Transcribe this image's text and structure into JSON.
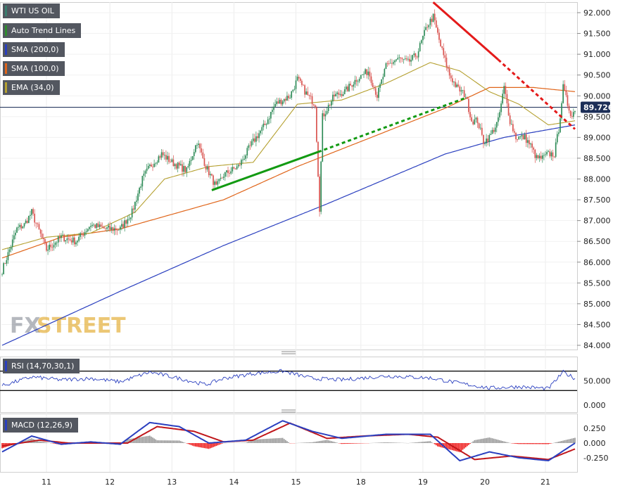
{
  "legend": [
    {
      "label": "WTI US OIL",
      "color": "#3a7d6d"
    },
    {
      "label": "Auto Trend Lines",
      "color": "#2e8b2e"
    },
    {
      "label": "SMA (200,0)",
      "color": "#2a3fbf"
    },
    {
      "label": "SMA (100,0)",
      "color": "#e0651a"
    },
    {
      "label": "EMA (34,0)",
      "color": "#b5a030"
    }
  ],
  "last_price_tag": "89.726",
  "watermark": {
    "fx": "FX",
    "street": "STREET"
  },
  "colors": {
    "up_candle": "#2e8b57",
    "down_candle": "#d9534f",
    "sma200": "#2a3fbf",
    "sma100": "#e0651a",
    "ema34": "#b5a030",
    "trend_green": "#129a12",
    "trend_red": "#e41a1a",
    "rsi_line": "#2a3fbf",
    "macd_line": "#2a3fbf",
    "signal_line": "#c0161a",
    "hist_pos": "#9a9a9a",
    "hist_neg": "#ee1c1c"
  },
  "rsi_panel": {
    "label": "RSI (14,70,30,1)",
    "ticks": [
      "50.000",
      "0.000"
    ]
  },
  "macd_panel": {
    "label": "MACD (12,26,9)",
    "ticks": [
      "0.250",
      "0.000",
      "-0.250"
    ]
  },
  "chart_data": {
    "type": "candlestick",
    "x_tick_labels": [
      "11",
      "12",
      "13",
      "14",
      "15",
      "18",
      "19",
      "20",
      "21"
    ],
    "y_tick_labels": [
      "92.000",
      "91.500",
      "91.000",
      "90.500",
      "90.000",
      "89.500",
      "89.000",
      "88.500",
      "88.000",
      "87.500",
      "87.000",
      "86.500",
      "86.000",
      "85.500",
      "85.000",
      "84.500",
      "84.000"
    ],
    "ylim": [
      84.0,
      92.0
    ],
    "last_price": 89.726,
    "price_anchors": [
      [
        0,
        85.8
      ],
      [
        5,
        86.3
      ],
      [
        10,
        86.8
      ],
      [
        15,
        86.9
      ],
      [
        20,
        87.2
      ],
      [
        30,
        86.3
      ],
      [
        40,
        86.6
      ],
      [
        50,
        86.5
      ],
      [
        60,
        86.9
      ],
      [
        70,
        86.8
      ],
      [
        80,
        86.8
      ],
      [
        88,
        87.2
      ],
      [
        95,
        88.0
      ],
      [
        100,
        88.3
      ],
      [
        108,
        88.6
      ],
      [
        115,
        88.4
      ],
      [
        125,
        88.2
      ],
      [
        132,
        88.9
      ],
      [
        138,
        88.3
      ],
      [
        145,
        87.8
      ],
      [
        150,
        88.1
      ],
      [
        160,
        88.3
      ],
      [
        170,
        88.9
      ],
      [
        178,
        89.3
      ],
      [
        185,
        89.8
      ],
      [
        195,
        90.0
      ],
      [
        200,
        90.4
      ],
      [
        207,
        90.0
      ],
      [
        212,
        89.8
      ],
      [
        215,
        87.3
      ],
      [
        217,
        89.5
      ],
      [
        225,
        90.0
      ],
      [
        232,
        90.1
      ],
      [
        240,
        90.4
      ],
      [
        248,
        90.6
      ],
      [
        254,
        90.0
      ],
      [
        260,
        90.7
      ],
      [
        268,
        90.9
      ],
      [
        275,
        90.8
      ],
      [
        281,
        91.0
      ],
      [
        288,
        91.7
      ],
      [
        292,
        91.9
      ],
      [
        297,
        91.2
      ],
      [
        303,
        90.5
      ],
      [
        308,
        90.2
      ],
      [
        314,
        90.0
      ],
      [
        318,
        89.4
      ],
      [
        322,
        89.4
      ],
      [
        326,
        88.9
      ],
      [
        330,
        89.0
      ],
      [
        336,
        89.4
      ],
      [
        340,
        90.2
      ],
      [
        344,
        89.4
      ],
      [
        348,
        89.0
      ],
      [
        354,
        89.0
      ],
      [
        358,
        88.8
      ],
      [
        362,
        88.5
      ],
      [
        366,
        88.5
      ],
      [
        370,
        88.6
      ],
      [
        374,
        88.6
      ],
      [
        377,
        89.2
      ],
      [
        380,
        90.2
      ],
      [
        383,
        89.8
      ],
      [
        386,
        89.5
      ],
      [
        388,
        89.7
      ]
    ],
    "sma200_anchors": [
      [
        0,
        84.0
      ],
      [
        80,
        85.3
      ],
      [
        150,
        86.4
      ],
      [
        220,
        87.4
      ],
      [
        300,
        88.6
      ],
      [
        340,
        89.0
      ],
      [
        388,
        89.3
      ]
    ],
    "sma100_anchors": [
      [
        0,
        86.1
      ],
      [
        40,
        86.6
      ],
      [
        80,
        86.8
      ],
      [
        110,
        87.1
      ],
      [
        150,
        87.5
      ],
      [
        200,
        88.3
      ],
      [
        250,
        89.0
      ],
      [
        300,
        89.7
      ],
      [
        330,
        90.2
      ],
      [
        360,
        90.2
      ],
      [
        388,
        90.1
      ]
    ],
    "ema34_anchors": [
      [
        0,
        86.3
      ],
      [
        30,
        86.6
      ],
      [
        60,
        86.7
      ],
      [
        90,
        87.2
      ],
      [
        110,
        88.0
      ],
      [
        140,
        88.3
      ],
      [
        170,
        88.4
      ],
      [
        200,
        89.8
      ],
      [
        230,
        89.9
      ],
      [
        260,
        90.3
      ],
      [
        290,
        90.8
      ],
      [
        310,
        90.6
      ],
      [
        330,
        90.1
      ],
      [
        350,
        89.8
      ],
      [
        370,
        89.3
      ],
      [
        388,
        89.4
      ]
    ],
    "trend_lines": [
      {
        "color": "green",
        "style": "solid",
        "points": [
          [
            142,
            87.73
          ],
          [
            214,
            88.65
          ]
        ]
      },
      {
        "color": "green",
        "style": "dashed",
        "points": [
          [
            214,
            88.65
          ],
          [
            314,
            89.95
          ]
        ]
      },
      {
        "color": "red",
        "style": "solid",
        "points": [
          [
            292,
            92.25
          ],
          [
            336,
            90.87
          ]
        ]
      },
      {
        "color": "red",
        "style": "dashed",
        "points": [
          [
            336,
            90.87
          ],
          [
            388,
            89.2
          ]
        ]
      }
    ],
    "rsi": {
      "ylim": [
        0,
        100
      ],
      "levels": [
        70,
        30
      ],
      "anchors": [
        [
          0,
          40
        ],
        [
          20,
          58
        ],
        [
          40,
          52
        ],
        [
          60,
          55
        ],
        [
          80,
          48
        ],
        [
          100,
          68
        ],
        [
          120,
          55
        ],
        [
          138,
          42
        ],
        [
          150,
          55
        ],
        [
          170,
          65
        ],
        [
          190,
          70
        ],
        [
          210,
          55
        ],
        [
          230,
          52
        ],
        [
          260,
          60
        ],
        [
          290,
          56
        ],
        [
          310,
          45
        ],
        [
          330,
          35
        ],
        [
          350,
          38
        ],
        [
          370,
          34
        ],
        [
          380,
          68
        ],
        [
          388,
          55
        ]
      ]
    },
    "macd": {
      "ylim": [
        -0.35,
        0.38
      ],
      "macd_anchors": [
        [
          0,
          -0.15
        ],
        [
          20,
          0.12
        ],
        [
          40,
          -0.02
        ],
        [
          60,
          0.02
        ],
        [
          80,
          -0.02
        ],
        [
          100,
          0.35
        ],
        [
          120,
          0.28
        ],
        [
          140,
          0.0
        ],
        [
          165,
          0.05
        ],
        [
          190,
          0.38
        ],
        [
          210,
          0.2
        ],
        [
          230,
          0.08
        ],
        [
          260,
          0.15
        ],
        [
          290,
          0.15
        ],
        [
          310,
          -0.3
        ],
        [
          330,
          -0.15
        ],
        [
          350,
          -0.25
        ],
        [
          370,
          -0.3
        ],
        [
          388,
          0.0
        ]
      ],
      "signal_anchors": [
        [
          0,
          -0.05
        ],
        [
          25,
          0.05
        ],
        [
          45,
          0.0
        ],
        [
          65,
          0.0
        ],
        [
          85,
          0.0
        ],
        [
          105,
          0.28
        ],
        [
          130,
          0.2
        ],
        [
          150,
          0.02
        ],
        [
          170,
          0.05
        ],
        [
          195,
          0.34
        ],
        [
          220,
          0.08
        ],
        [
          245,
          0.12
        ],
        [
          275,
          0.15
        ],
        [
          295,
          0.1
        ],
        [
          320,
          -0.28
        ],
        [
          345,
          -0.22
        ],
        [
          370,
          -0.28
        ],
        [
          388,
          -0.1
        ]
      ]
    }
  }
}
